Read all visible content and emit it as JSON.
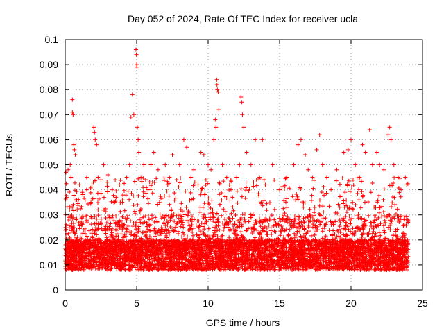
{
  "chart_data": {
    "type": "scatter",
    "title": "Day 052 of 2024, Rate Of TEC Index for receiver ucla",
    "xlabel": "GPS time / hours",
    "ylabel": "ROTI / TECUs",
    "xlim": [
      0,
      25
    ],
    "ylim": [
      0,
      0.1
    ],
    "x_ticks": [
      0,
      5,
      10,
      15,
      20,
      25
    ],
    "x_tick_labels": [
      "0",
      "5",
      "10",
      "15",
      "20",
      "25"
    ],
    "y_ticks": [
      0,
      0.01,
      0.02,
      0.03,
      0.04,
      0.05,
      0.06,
      0.07,
      0.08,
      0.09,
      0.1
    ],
    "y_tick_labels": [
      "0",
      "0.01",
      "0.02",
      "0.03",
      "0.04",
      "0.05",
      "0.06",
      "0.07",
      "0.08",
      "0.09",
      "0.1"
    ],
    "grid": true,
    "marker": "+",
    "marker_color": "#ff0000",
    "series": [
      {
        "name": "ROTI",
        "points": [
          [
            0.05,
            0.047
          ],
          [
            0.1,
            0.037
          ],
          [
            0.2,
            0.048
          ],
          [
            0.3,
            0.032
          ],
          [
            0.35,
            0.05
          ],
          [
            0.4,
            0.045
          ],
          [
            0.5,
            0.076
          ],
          [
            0.5,
            0.071
          ],
          [
            0.55,
            0.07
          ],
          [
            0.6,
            0.058
          ],
          [
            0.65,
            0.056
          ],
          [
            0.7,
            0.054
          ],
          [
            0.8,
            0.036
          ],
          [
            1.0,
            0.042
          ],
          [
            1.2,
            0.039
          ],
          [
            1.5,
            0.04
          ],
          [
            1.8,
            0.035
          ],
          [
            2.0,
            0.065
          ],
          [
            2.05,
            0.063
          ],
          [
            2.1,
            0.06
          ],
          [
            2.2,
            0.058
          ],
          [
            2.3,
            0.045
          ],
          [
            2.5,
            0.044
          ],
          [
            2.7,
            0.05
          ],
          [
            3.0,
            0.046
          ],
          [
            3.3,
            0.04
          ],
          [
            3.5,
            0.044
          ],
          [
            3.8,
            0.042
          ],
          [
            4.0,
            0.035
          ],
          [
            4.3,
            0.045
          ],
          [
            4.5,
            0.05
          ],
          [
            4.6,
            0.069
          ],
          [
            4.7,
            0.078
          ],
          [
            4.8,
            0.07
          ],
          [
            4.95,
            0.096
          ],
          [
            4.98,
            0.094
          ],
          [
            5.0,
            0.09
          ],
          [
            5.02,
            0.089
          ],
          [
            5.05,
            0.065
          ],
          [
            5.1,
            0.06
          ],
          [
            5.15,
            0.055
          ],
          [
            5.3,
            0.045
          ],
          [
            5.5,
            0.05
          ],
          [
            5.8,
            0.04
          ],
          [
            6.0,
            0.05
          ],
          [
            6.2,
            0.055
          ],
          [
            6.5,
            0.048
          ],
          [
            7.0,
            0.05
          ],
          [
            7.3,
            0.045
          ],
          [
            7.5,
            0.054
          ],
          [
            7.8,
            0.044
          ],
          [
            8.0,
            0.05
          ],
          [
            8.3,
            0.06
          ],
          [
            8.5,
            0.057
          ],
          [
            8.8,
            0.045
          ],
          [
            9.0,
            0.048
          ],
          [
            9.3,
            0.042
          ],
          [
            9.5,
            0.055
          ],
          [
            9.7,
            0.054
          ],
          [
            10.0,
            0.05
          ],
          [
            10.2,
            0.048
          ],
          [
            10.4,
            0.06
          ],
          [
            10.5,
            0.068
          ],
          [
            10.55,
            0.065
          ],
          [
            10.6,
            0.084
          ],
          [
            10.62,
            0.082
          ],
          [
            10.65,
            0.08
          ],
          [
            10.7,
            0.079
          ],
          [
            10.75,
            0.072
          ],
          [
            11.0,
            0.05
          ],
          [
            11.3,
            0.045
          ],
          [
            11.6,
            0.04
          ],
          [
            12.0,
            0.045
          ],
          [
            12.2,
            0.05
          ],
          [
            12.3,
            0.077
          ],
          [
            12.35,
            0.075
          ],
          [
            12.4,
            0.07
          ],
          [
            12.5,
            0.065
          ],
          [
            12.7,
            0.055
          ],
          [
            13.0,
            0.05
          ],
          [
            13.3,
            0.06
          ],
          [
            13.6,
            0.045
          ],
          [
            13.8,
            0.06
          ],
          [
            14.0,
            0.042
          ],
          [
            14.5,
            0.05
          ],
          [
            15.0,
            0.04
          ],
          [
            15.5,
            0.045
          ],
          [
            16.0,
            0.05
          ],
          [
            16.3,
            0.058
          ],
          [
            16.5,
            0.06
          ],
          [
            16.8,
            0.054
          ],
          [
            17.0,
            0.048
          ],
          [
            17.3,
            0.045
          ],
          [
            17.6,
            0.056
          ],
          [
            17.8,
            0.062
          ],
          [
            18.0,
            0.05
          ],
          [
            18.3,
            0.045
          ],
          [
            18.6,
            0.04
          ],
          [
            19.0,
            0.048
          ],
          [
            19.5,
            0.055
          ],
          [
            19.8,
            0.056
          ],
          [
            20.0,
            0.06
          ],
          [
            20.3,
            0.05
          ],
          [
            20.6,
            0.045
          ],
          [
            20.8,
            0.058
          ],
          [
            21.0,
            0.055
          ],
          [
            21.3,
            0.064
          ],
          [
            21.5,
            0.05
          ],
          [
            21.8,
            0.055
          ],
          [
            22.0,
            0.05
          ],
          [
            22.3,
            0.048
          ],
          [
            22.6,
            0.062
          ],
          [
            22.7,
            0.065
          ],
          [
            22.8,
            0.06
          ],
          [
            23.0,
            0.05
          ],
          [
            23.3,
            0.045
          ],
          [
            23.5,
            0.04
          ],
          [
            23.8,
            0.045
          ],
          [
            23.9,
            0.042
          ]
        ]
      }
    ],
    "baseline_band": {
      "x_range": [
        0,
        24
      ],
      "roti_min": 0.005,
      "roti_typical": 0.015,
      "roti_upper_dense": 0.03
    }
  }
}
